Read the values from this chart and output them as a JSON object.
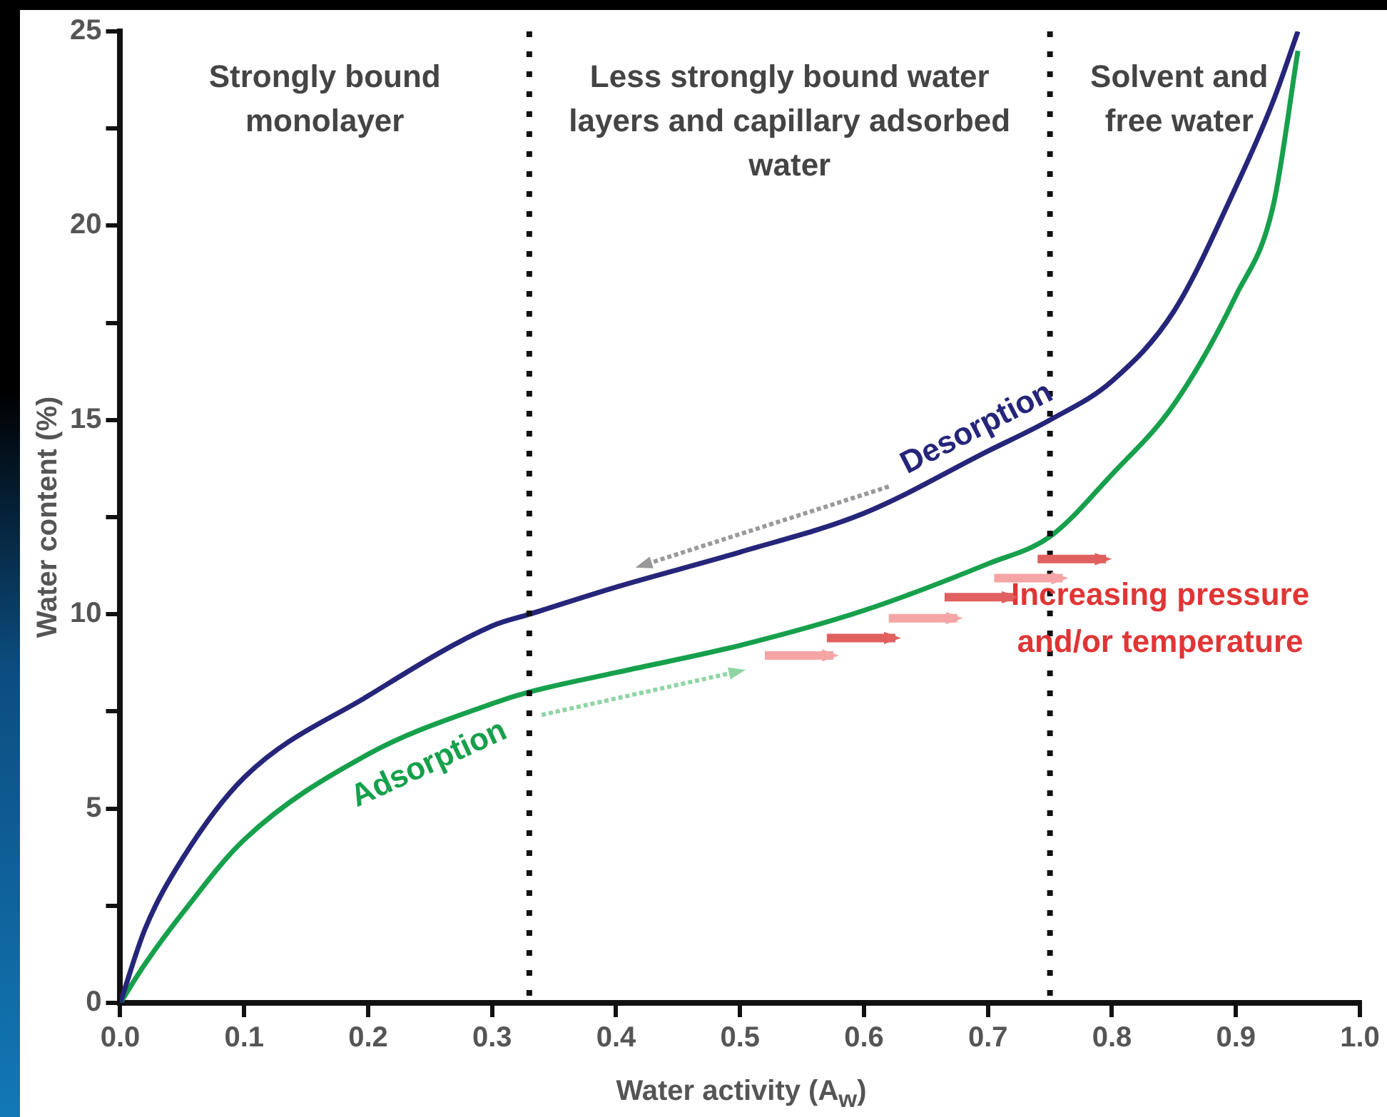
{
  "chart_data": {
    "type": "line",
    "xlabel": "Water activity (A$_{w}$)",
    "ylabel": "Water content (%)",
    "xlim": [
      0,
      1
    ],
    "xticks": [
      {
        "value": 0,
        "label": "0.0"
      },
      0.1,
      0.2,
      0.3,
      0.4,
      0.5,
      0.6,
      0.7,
      0.8,
      0.9,
      {
        "value": 1,
        "label": "1.0"
      }
    ],
    "ylim": [
      0,
      25
    ],
    "yticks": [
      0,
      {
        "value": 2.5,
        "label": null
      },
      5,
      {
        "value": 7.5,
        "label": null
      },
      10,
      {
        "value": 12.5,
        "label": null
      },
      15,
      {
        "value": 17.5,
        "label": null
      },
      20,
      {
        "value": 22.5,
        "label": null
      },
      25
    ],
    "x": [
      0,
      0.02,
      0.05,
      0.1,
      0.2,
      0.3,
      0.33,
      0.4,
      0.5,
      0.6,
      0.7,
      0.75,
      0.8,
      0.85,
      0.9,
      0.93,
      0.95
    ],
    "series": [
      {
        "name": "Desorption",
        "color": "#25257a",
        "values": [
          0,
          1.9,
          3.7,
          5.8,
          7.9,
          9.7,
          10.0,
          10.7,
          11.6,
          12.6,
          14.2,
          15.0,
          16.0,
          17.8,
          21.0,
          23.2,
          25
        ]
      },
      {
        "name": "Adsorption",
        "color": "#17a04c",
        "values": [
          0,
          1.0,
          2.3,
          4.2,
          6.4,
          7.7,
          8.0,
          8.5,
          9.2,
          10.1,
          11.3,
          12.0,
          13.6,
          15.4,
          18.2,
          20.5,
          24.5
        ]
      }
    ],
    "ref_lines": [
      {
        "axis": "x",
        "value": 0.33,
        "line_style": "dotted",
        "color": "#111111"
      },
      {
        "axis": "x",
        "value": 0.75,
        "line_style": "dotted",
        "color": "#111111"
      }
    ],
    "annotations": [
      "Strongly bound monolayer",
      "Less strongly bound water layers and capillary adsorbed water",
      "Solvent and free water",
      "Increasing pressure and/or temperature"
    ],
    "marker": "none",
    "line_style": "solid",
    "legend": false,
    "grid": false
  }
}
